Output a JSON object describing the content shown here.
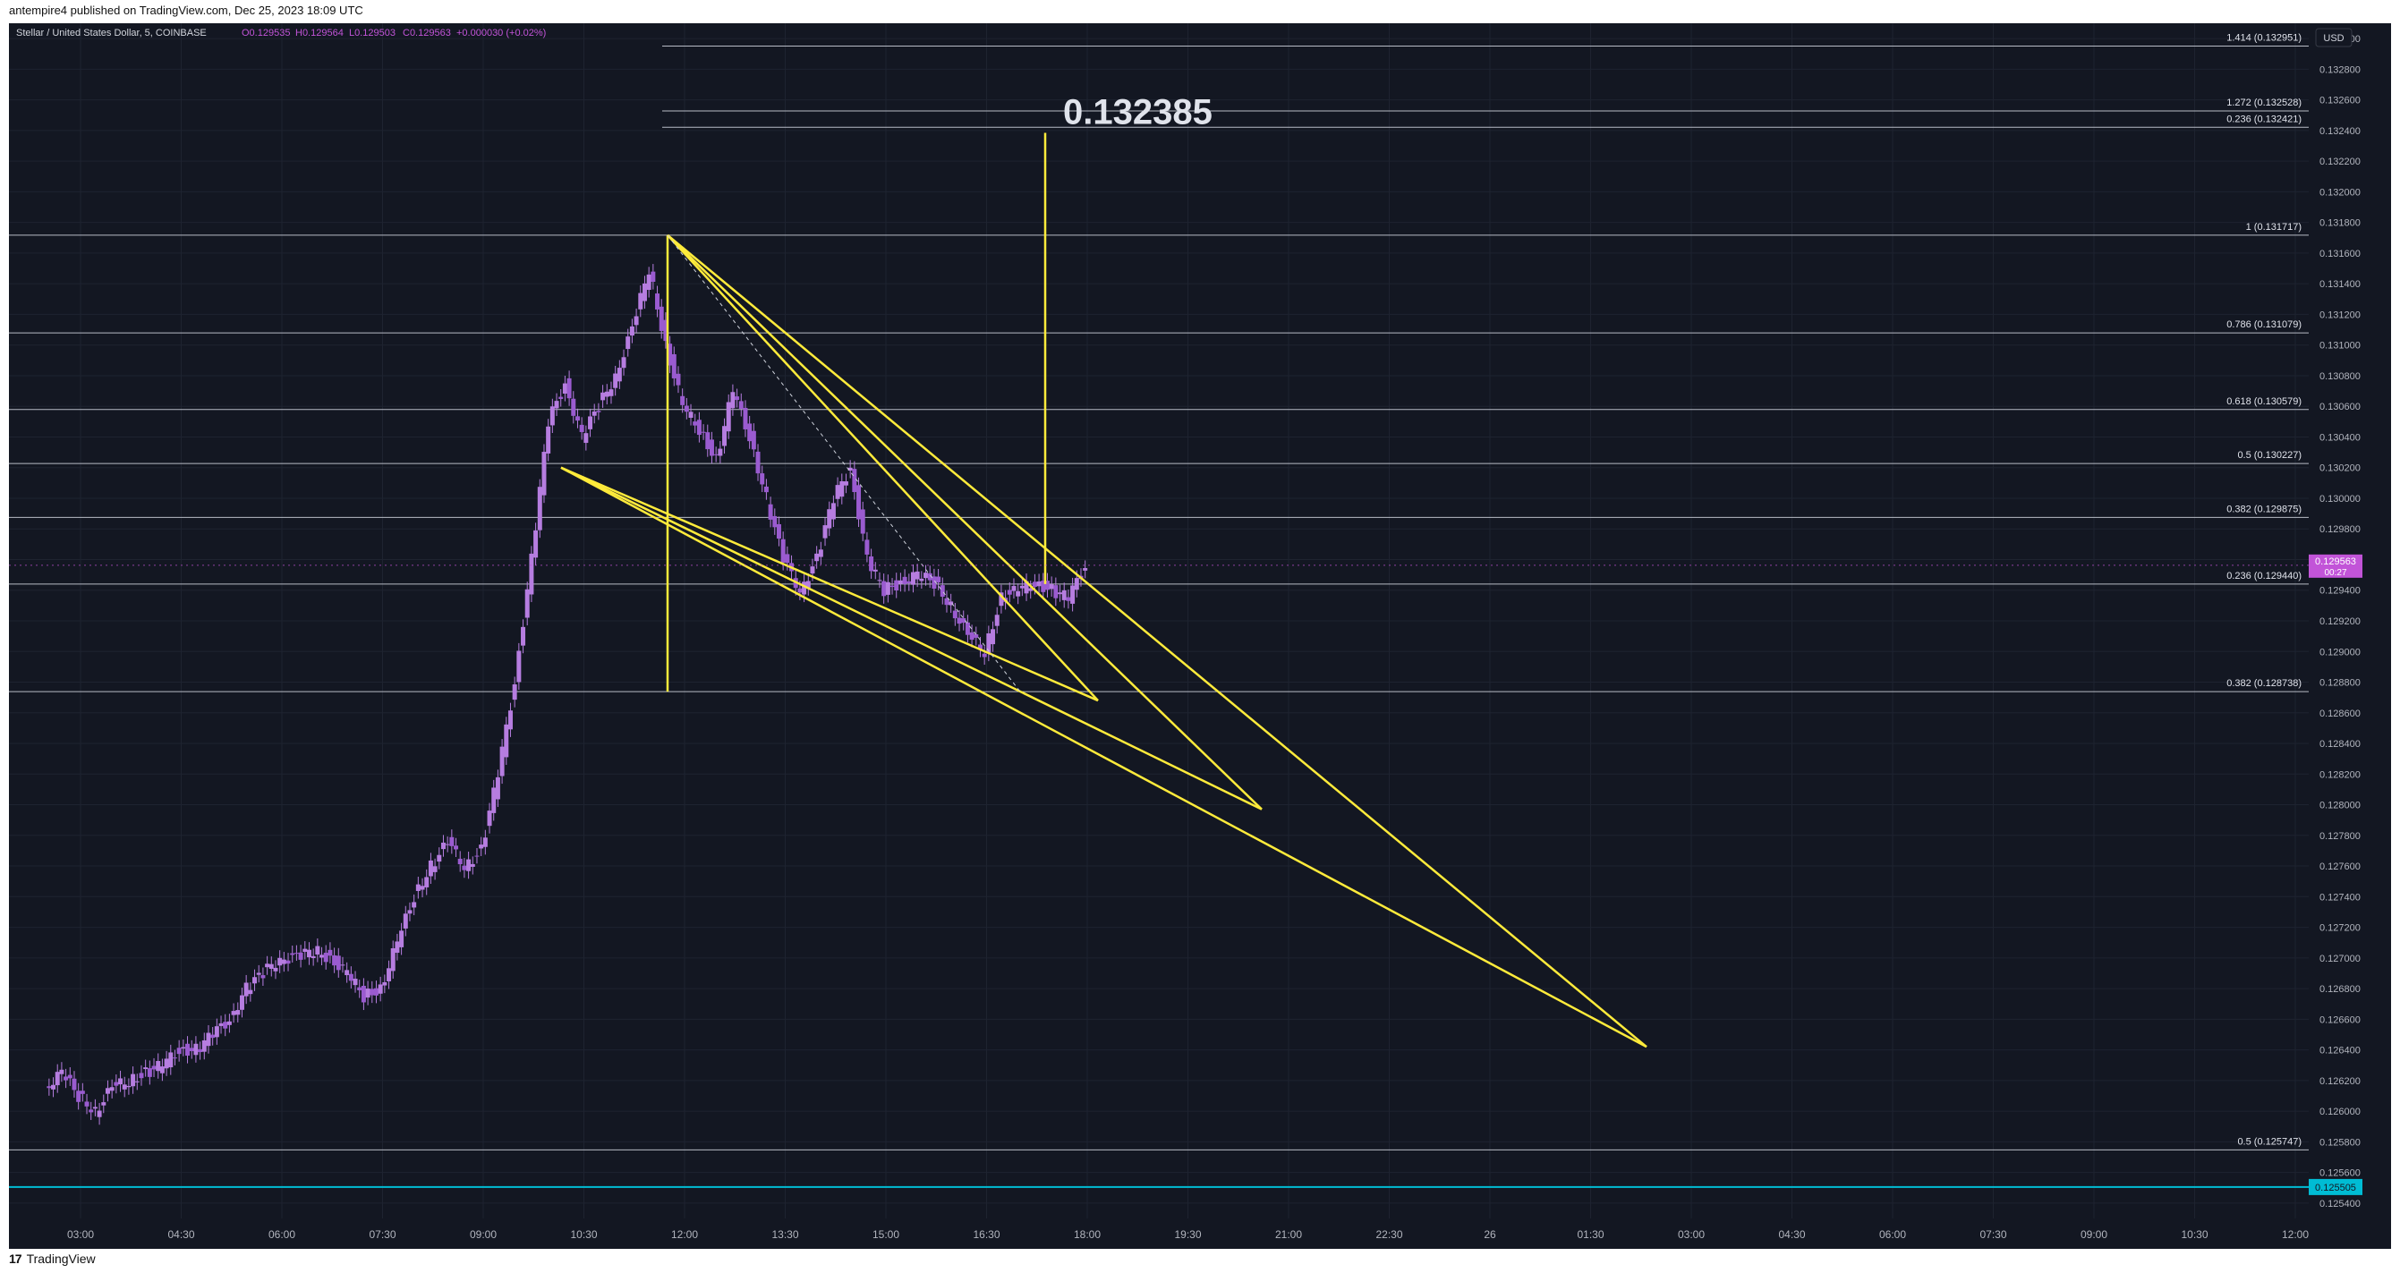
{
  "publish_line": "antempire4 published on TradingView.com, Dec 25, 2023 18:09 UTC",
  "footer_brand": "TradingView",
  "footer_logo": "17",
  "chart_data": {
    "type": "candlestick",
    "header": {
      "symbol": "Stellar / United States Dollar, 5, COINBASE",
      "open": "O0.129535",
      "high": "H0.129564",
      "low": "L0.129503",
      "close": "C0.129563",
      "change": "+0.000030 (+0.02%)"
    },
    "currency_button": "USD",
    "big_label": "0.132385",
    "price_axis_ticks": [
      "0.133000",
      "0.132800",
      "0.132600",
      "0.132400",
      "0.132200",
      "0.132000",
      "0.131800",
      "0.131600",
      "0.131400",
      "0.131200",
      "0.131000",
      "0.130800",
      "0.130600",
      "0.130400",
      "0.130200",
      "0.130000",
      "0.129800",
      "0.129600",
      "0.129400",
      "0.129200",
      "0.129000",
      "0.128800",
      "0.128600",
      "0.128400",
      "0.128200",
      "0.128000",
      "0.127800",
      "0.127600",
      "0.127400",
      "0.127200",
      "0.127000",
      "0.126800",
      "0.126600",
      "0.126400",
      "0.126200",
      "0.126000",
      "0.125800",
      "0.125600",
      "0.125400"
    ],
    "time_axis_ticks": [
      "03:00",
      "04:30",
      "06:00",
      "07:30",
      "09:00",
      "10:30",
      "12:00",
      "13:30",
      "15:00",
      "16:30",
      "18:00",
      "19:30",
      "21:00",
      "22:30",
      "26",
      "01:30",
      "03:00",
      "04:30",
      "06:00",
      "07:30",
      "09:00",
      "10:30",
      "12:00"
    ],
    "current_price": {
      "value": "0.129563",
      "countdown": "00:27",
      "color": "#c254d8"
    },
    "horizontal_line_tag": {
      "value": "0.125505",
      "color": "#00bcd4"
    },
    "fib_levels": [
      {
        "label": "1.414 (0.132951)",
        "price": 0.132951
      },
      {
        "label": "1.272 (0.132528)",
        "price": 0.132528
      },
      {
        "label": "0.236 (0.132421)",
        "price": 0.132421
      },
      {
        "label": "1 (0.131717)",
        "price": 0.131717
      },
      {
        "label": "0.786 (0.131079)",
        "price": 0.131079
      },
      {
        "label": "0.618 (0.130579)",
        "price": 0.130579
      },
      {
        "label": "0.5 (0.130227)",
        "price": 0.130227
      },
      {
        "label": "0.382 (0.129875)",
        "price": 0.129875
      },
      {
        "label": "0.236 (0.129440)",
        "price": 0.12944
      },
      {
        "label": "0.382 (0.128738)",
        "price": 0.128738
      },
      {
        "label": "0.5 (0.125747)",
        "price": 0.125747
      }
    ],
    "candle_close_path": [
      [
        "02:30",
        0.12615
      ],
      [
        "02:45",
        0.12625
      ],
      [
        "03:00",
        0.1261
      ],
      [
        "03:15",
        0.126
      ],
      [
        "03:30",
        0.12615
      ],
      [
        "03:45",
        0.1262
      ],
      [
        "04:00",
        0.12625
      ],
      [
        "04:15",
        0.1263
      ],
      [
        "04:30",
        0.1264
      ],
      [
        "04:45",
        0.1264
      ],
      [
        "05:00",
        0.1265
      ],
      [
        "05:15",
        0.1266
      ],
      [
        "05:30",
        0.1268
      ],
      [
        "05:45",
        0.1269
      ],
      [
        "06:00",
        0.127
      ],
      [
        "06:15",
        0.127
      ],
      [
        "06:30",
        0.12705
      ],
      [
        "06:45",
        0.127
      ],
      [
        "07:00",
        0.1269
      ],
      [
        "07:15",
        0.12675
      ],
      [
        "07:30",
        0.1268
      ],
      [
        "07:45",
        0.1271
      ],
      [
        "08:00",
        0.1274
      ],
      [
        "08:15",
        0.1276
      ],
      [
        "08:30",
        0.12775
      ],
      [
        "08:45",
        0.1276
      ],
      [
        "09:00",
        0.1277
      ],
      [
        "09:15",
        0.1282
      ],
      [
        "09:30",
        0.1288
      ],
      [
        "09:45",
        0.1296
      ],
      [
        "10:00",
        0.1305
      ],
      [
        "10:15",
        0.13075
      ],
      [
        "10:30",
        0.1304
      ],
      [
        "10:45",
        0.1306
      ],
      [
        "11:00",
        0.1308
      ],
      [
        "11:15",
        0.1311
      ],
      [
        "11:30",
        0.1315
      ],
      [
        "11:45",
        0.131
      ],
      [
        "12:00",
        0.1306
      ],
      [
        "12:15",
        0.13045
      ],
      [
        "12:30",
        0.13025
      ],
      [
        "12:45",
        0.1307
      ],
      [
        "13:00",
        0.1304
      ],
      [
        "13:15",
        0.13
      ],
      [
        "13:30",
        0.1296
      ],
      [
        "13:45",
        0.1294
      ],
      [
        "14:00",
        0.1296
      ],
      [
        "14:15",
        0.13
      ],
      [
        "14:30",
        0.1302
      ],
      [
        "14:45",
        0.1296
      ],
      [
        "15:00",
        0.1294
      ],
      [
        "15:15",
        0.12945
      ],
      [
        "15:30",
        0.1295
      ],
      [
        "15:45",
        0.12945
      ],
      [
        "16:00",
        0.1293
      ],
      [
        "16:15",
        0.1291
      ],
      [
        "16:30",
        0.129
      ],
      [
        "16:45",
        0.12935
      ],
      [
        "17:00",
        0.1294
      ],
      [
        "17:15",
        0.12945
      ],
      [
        "17:30",
        0.1294
      ],
      [
        "17:45",
        0.12935
      ],
      [
        "18:00",
        0.12956
      ]
    ],
    "drawings": {
      "line_color": "#ffeb3b",
      "description_hidden": true
    }
  }
}
